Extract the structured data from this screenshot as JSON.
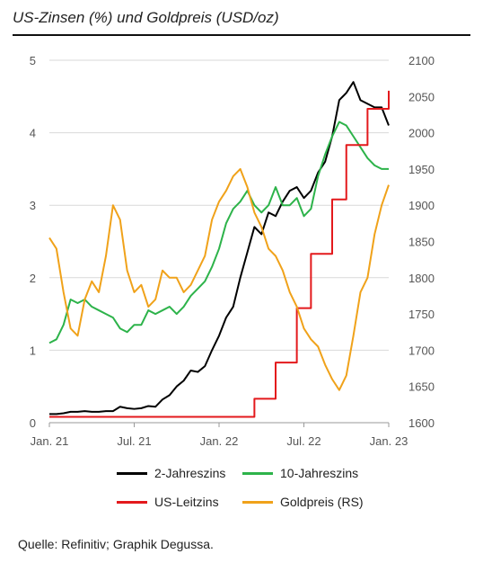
{
  "chart_data": {
    "type": "line",
    "title": "US-Zinsen (%) und Goldpreis (USD/oz)",
    "x_ticks": [
      "Jan. 21",
      "Jul. 21",
      "Jan. 22",
      "Jul. 22",
      "Jan. 23"
    ],
    "y_left": {
      "ticks": [
        0,
        1,
        2,
        3,
        4,
        5
      ],
      "range": [
        0,
        5
      ]
    },
    "y_right": {
      "ticks": [
        1600,
        1650,
        1700,
        1750,
        1800,
        1850,
        1900,
        1950,
        2000,
        2050,
        2100
      ],
      "range": [
        1600,
        2100
      ]
    },
    "grid": "horizontal",
    "legend_position": "bottom",
    "series": [
      {
        "name": "2-Jahreszins",
        "axis": "left",
        "color": "#000000",
        "x": [
          0,
          0.5,
          1,
          1.5,
          2,
          2.5,
          3,
          3.5,
          4,
          4.5,
          5,
          5.5,
          6,
          6.5,
          7,
          7.5,
          8,
          8.5,
          9,
          9.5,
          10,
          10.5,
          11,
          11.5,
          12,
          12.5,
          13,
          13.5,
          14,
          14.5,
          15,
          15.5,
          16,
          16.5,
          17,
          17.5,
          18,
          18.5,
          19,
          19.5,
          20,
          20.5,
          21,
          21.5,
          22,
          22.5,
          23,
          23.5,
          24
        ],
        "y": [
          0.12,
          0.12,
          0.13,
          0.15,
          0.15,
          0.16,
          0.15,
          0.15,
          0.16,
          0.16,
          0.22,
          0.2,
          0.19,
          0.2,
          0.23,
          0.22,
          0.32,
          0.38,
          0.5,
          0.58,
          0.72,
          0.7,
          0.78,
          1.0,
          1.2,
          1.45,
          1.6,
          2.0,
          2.35,
          2.7,
          2.6,
          2.9,
          2.85,
          3.05,
          3.2,
          3.25,
          3.1,
          3.2,
          3.45,
          3.6,
          3.95,
          4.45,
          4.55,
          4.7,
          4.45,
          4.4,
          4.35,
          4.35,
          4.1
        ]
      },
      {
        "name": "10-Jahreszins",
        "axis": "left",
        "color": "#2db34a",
        "x": [
          0,
          0.5,
          1,
          1.5,
          2,
          2.5,
          3,
          3.5,
          4,
          4.5,
          5,
          5.5,
          6,
          6.5,
          7,
          7.5,
          8,
          8.5,
          9,
          9.5,
          10,
          10.5,
          11,
          11.5,
          12,
          12.5,
          13,
          13.5,
          14,
          14.5,
          15,
          15.5,
          16,
          16.5,
          17,
          17.5,
          18,
          18.5,
          19,
          19.5,
          20,
          20.5,
          21,
          21.5,
          22,
          22.5,
          23,
          23.5,
          24
        ],
        "y": [
          1.1,
          1.15,
          1.35,
          1.7,
          1.65,
          1.7,
          1.6,
          1.55,
          1.5,
          1.45,
          1.3,
          1.25,
          1.35,
          1.35,
          1.55,
          1.5,
          1.55,
          1.6,
          1.5,
          1.6,
          1.75,
          1.85,
          1.95,
          2.15,
          2.4,
          2.75,
          2.95,
          3.05,
          3.2,
          3.0,
          2.9,
          3.0,
          3.25,
          3.0,
          3.0,
          3.1,
          2.85,
          2.95,
          3.4,
          3.7,
          3.95,
          4.15,
          4.1,
          3.95,
          3.8,
          3.65,
          3.55,
          3.5,
          3.5
        ]
      },
      {
        "name": "US-Leitzins",
        "axis": "left",
        "color": "#e3191c",
        "step": true,
        "x": [
          0,
          14.5,
          16.0,
          17.5,
          18.5,
          20.0,
          21.0,
          22.5,
          24.0
        ],
        "y": [
          0.08,
          0.33,
          0.83,
          1.58,
          2.33,
          3.08,
          3.83,
          4.33,
          4.58
        ]
      },
      {
        "name": "Goldpreis (RS)",
        "axis": "right",
        "color": "#f0a21a",
        "x": [
          0,
          0.5,
          1,
          1.5,
          2,
          2.5,
          3,
          3.5,
          4,
          4.5,
          5,
          5.5,
          6,
          6.5,
          7,
          7.5,
          8,
          8.5,
          9,
          9.5,
          10,
          10.5,
          11,
          11.5,
          12,
          12.5,
          13,
          13.5,
          14,
          14.5,
          15,
          15.5,
          16,
          16.5,
          17,
          17.5,
          18,
          18.5,
          19,
          19.5,
          20,
          20.5,
          21,
          21.5,
          22,
          22.5,
          23,
          23.5,
          24
        ],
        "y": [
          1855,
          1840,
          1780,
          1730,
          1720,
          1770,
          1795,
          1780,
          1830,
          1900,
          1880,
          1810,
          1780,
          1790,
          1760,
          1770,
          1810,
          1800,
          1800,
          1780,
          1790,
          1810,
          1830,
          1880,
          1905,
          1920,
          1940,
          1950,
          1925,
          1890,
          1870,
          1840,
          1830,
          1810,
          1780,
          1760,
          1730,
          1715,
          1705,
          1680,
          1660,
          1645,
          1665,
          1720,
          1780,
          1800,
          1860,
          1900,
          1928
        ]
      }
    ]
  },
  "legend": {
    "items": [
      {
        "label": "2-Jahreszins",
        "color": "#000000"
      },
      {
        "label": "10-Jahreszins",
        "color": "#2db34a"
      },
      {
        "label": "US-Leitzins",
        "color": "#e3191c"
      },
      {
        "label": "Goldpreis (RS)",
        "color": "#f0a21a"
      }
    ]
  },
  "source": "Quelle: Refinitiv; Graphik Degussa."
}
